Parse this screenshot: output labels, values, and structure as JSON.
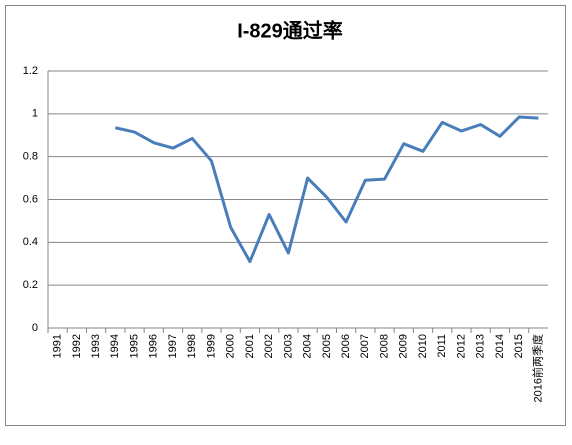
{
  "chart_data": {
    "type": "line",
    "title": "I-829通过率",
    "categories": [
      "1991",
      "1992",
      "1993",
      "1994",
      "1995",
      "1996",
      "1997",
      "1998",
      "1999",
      "2000",
      "2001",
      "2002",
      "2003",
      "2004",
      "2005",
      "2006",
      "2007",
      "2008",
      "2009",
      "2010",
      "2011",
      "2012",
      "2013",
      "2014",
      "2015",
      "2016前两季度"
    ],
    "series": [
      {
        "name": "I-829通过率",
        "color": "#4a7ebb",
        "values": [
          null,
          null,
          null,
          0.935,
          0.915,
          0.865,
          0.84,
          0.885,
          0.78,
          0.47,
          0.31,
          0.53,
          0.35,
          0.7,
          0.61,
          0.495,
          0.69,
          0.695,
          0.86,
          0.825,
          0.96,
          0.92,
          0.95,
          0.895,
          0.985,
          0.98
        ]
      }
    ],
    "ylim": [
      0,
      1.2
    ],
    "yticks": [
      0,
      0.2,
      0.4,
      0.6,
      0.8,
      1,
      1.2
    ],
    "grid": true
  }
}
